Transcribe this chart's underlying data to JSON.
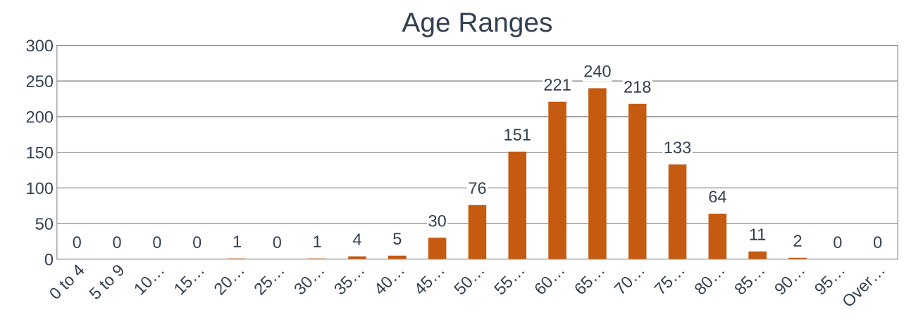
{
  "chart_data": {
    "type": "bar",
    "title": "Age Ranges",
    "categories": [
      "0 to 4",
      "5 to 9",
      "10…",
      "15…",
      "20…",
      "25…",
      "30…",
      "35…",
      "40…",
      "45…",
      "50…",
      "55…",
      "60…",
      "65…",
      "70…",
      "75…",
      "80…",
      "85…",
      "90…",
      "95…",
      "Over…"
    ],
    "values": [
      0,
      0,
      0,
      0,
      1,
      0,
      1,
      4,
      5,
      30,
      76,
      151,
      221,
      240,
      218,
      133,
      64,
      11,
      2,
      0,
      0
    ],
    "color": "#c55a11",
    "ylim": [
      0,
      300
    ],
    "yticks": [
      0,
      50,
      100,
      150,
      200,
      250,
      300
    ],
    "grid": "y",
    "data_labels": true
  }
}
